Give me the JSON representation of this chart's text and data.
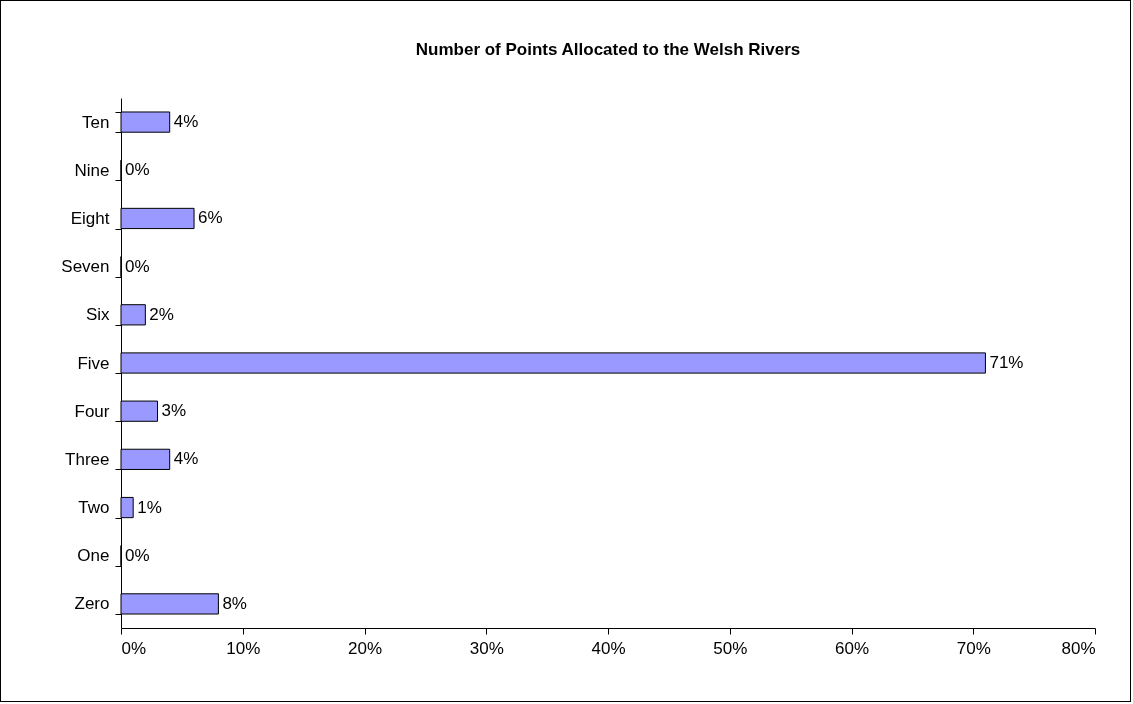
{
  "chart_data": {
    "type": "bar",
    "orientation": "horizontal",
    "title": "Number of Points Allocated to the Welsh Rivers",
    "categories": [
      "Ten",
      "Nine",
      "Eight",
      "Seven",
      "Six",
      "Five",
      "Four",
      "Three",
      "Two",
      "One",
      "Zero"
    ],
    "values": [
      4,
      0,
      6,
      0,
      2,
      71,
      3,
      4,
      1,
      0,
      8
    ],
    "value_labels": [
      "4%",
      "0%",
      "6%",
      "0%",
      "2%",
      "71%",
      "3%",
      "4%",
      "1%",
      "0%",
      "8%"
    ],
    "color": "#9999ff",
    "xlim": [
      0,
      80
    ],
    "xticks": [
      {
        "value": 0,
        "label": "0%"
      },
      {
        "value": 10,
        "label": "10%"
      },
      {
        "value": 20,
        "label": "20%"
      },
      {
        "value": 30,
        "label": "30%"
      },
      {
        "value": 40,
        "label": "40%"
      },
      {
        "value": 50,
        "label": "50%"
      },
      {
        "value": 60,
        "label": "60%"
      },
      {
        "value": 70,
        "label": "70%"
      },
      {
        "value": 80,
        "label": "80%"
      }
    ],
    "grid": false
  }
}
